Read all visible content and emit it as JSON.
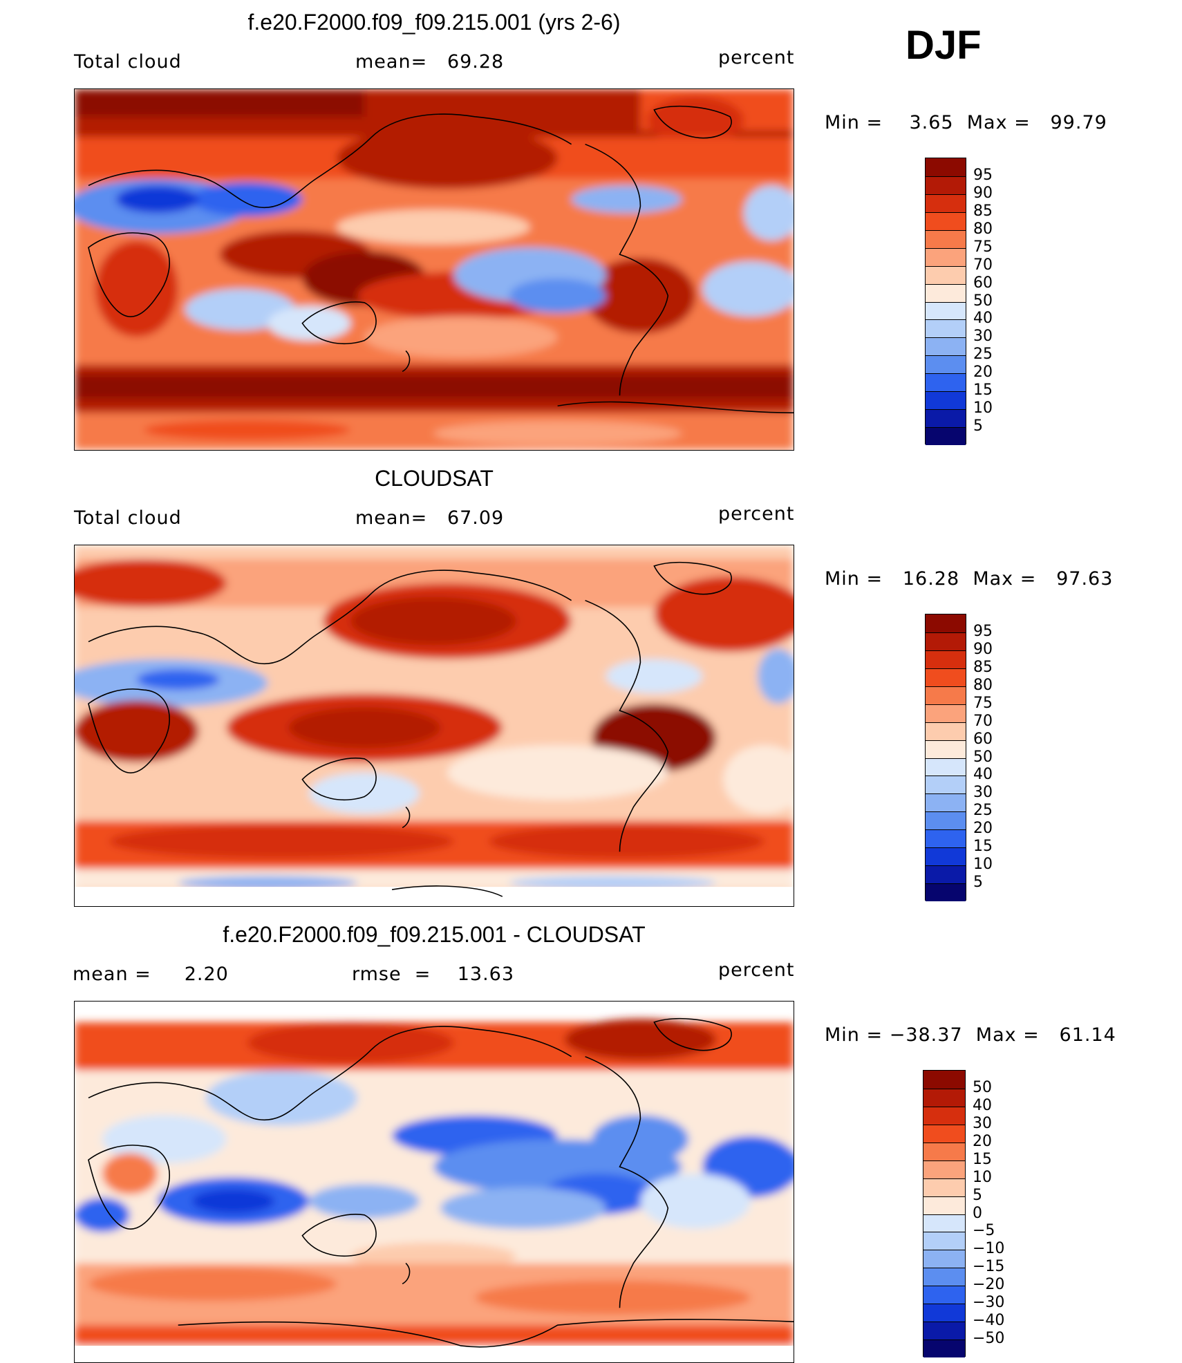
{
  "season": "DJF",
  "panels": [
    {
      "title": "f.e20.F2000.f09_f09.215.001 (yrs 2-6)",
      "left_label": "Total cloud",
      "mid_label": "mean=   69.28",
      "units": "percent",
      "minmax": "Min =    3.65  Max =   99.79",
      "colorbar_labels": [
        "95",
        "90",
        "85",
        "80",
        "75",
        "70",
        "60",
        "50",
        "40",
        "30",
        "25",
        "20",
        "15",
        "10",
        "5"
      ],
      "colors": [
        "#8c0a00",
        "#b31a06",
        "#d62f0e",
        "#f04d1e",
        "#f67a4a",
        "#fba37c",
        "#fdccae",
        "#fdeadb",
        "#d6e6fb",
        "#b3cff8",
        "#8cb2f3",
        "#5c8ef0",
        "#2e63ef",
        "#1139d8",
        "#0a1aa8",
        "#06056e"
      ]
    },
    {
      "title": "CLOUDSAT",
      "left_label": "Total cloud",
      "mid_label": "mean=   67.09",
      "units": "percent",
      "minmax": "Min =   16.28  Max =   97.63",
      "colorbar_labels": [
        "95",
        "90",
        "85",
        "80",
        "75",
        "70",
        "60",
        "50",
        "40",
        "30",
        "25",
        "20",
        "15",
        "10",
        "5"
      ],
      "colors": [
        "#8c0a00",
        "#b31a06",
        "#d62f0e",
        "#f04d1e",
        "#f67a4a",
        "#fba37c",
        "#fdccae",
        "#fdeadb",
        "#d6e6fb",
        "#b3cff8",
        "#8cb2f3",
        "#5c8ef0",
        "#2e63ef",
        "#1139d8",
        "#0a1aa8",
        "#06056e"
      ]
    },
    {
      "title": "f.e20.F2000.f09_f09.215.001 - CLOUDSAT",
      "left_label": "mean =     2.20",
      "mid_label": "rmse  =    13.63",
      "units": "percent",
      "minmax": "Min = −38.37  Max =   61.14",
      "colorbar_labels": [
        "50",
        "40",
        "30",
        "20",
        "15",
        "10",
        "5",
        "0",
        "−5",
        "−10",
        "−15",
        "−20",
        "−30",
        "−40",
        "−50"
      ],
      "colors": [
        "#8c0a00",
        "#b31a06",
        "#d62f0e",
        "#f04d1e",
        "#f67a4a",
        "#fba37c",
        "#fdccae",
        "#fdeadb",
        "#d6e6fb",
        "#b3cff8",
        "#8cb2f3",
        "#5c8ef0",
        "#2e63ef",
        "#1139d8",
        "#0a1aa8",
        "#06056e"
      ]
    }
  ]
}
